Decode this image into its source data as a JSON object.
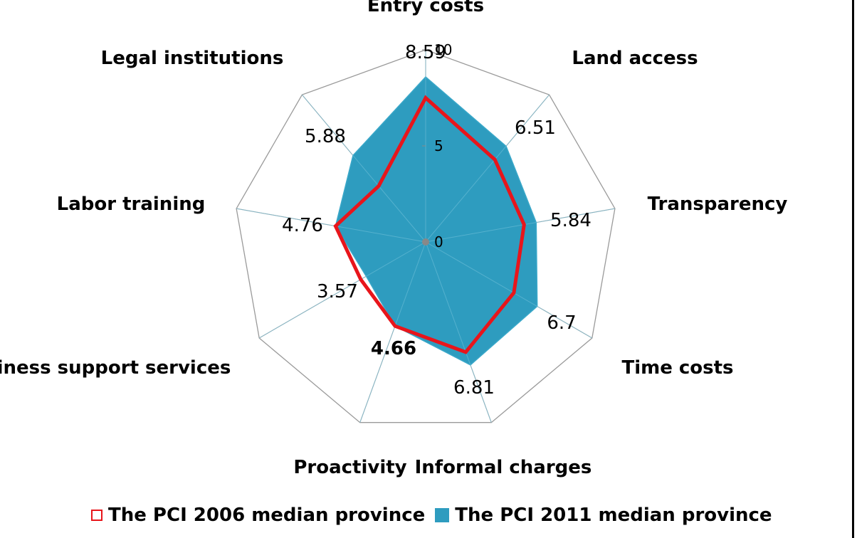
{
  "chart_data": {
    "type": "radar",
    "axes": [
      "Entry costs",
      "Land access",
      "Transparency",
      "Time costs",
      "Informal charges",
      "Proactivity",
      "Business support services",
      "Labor training",
      "Legal institutions"
    ],
    "axis_label_text": [
      "Entry costs",
      "Land access",
      "Transparency",
      "Time costs",
      "Informal charges",
      "Proactivity",
      "iness support services",
      "Labor training",
      "Legal institutions"
    ],
    "range": [
      0,
      10
    ],
    "ticks": [
      0,
      5,
      10
    ],
    "series": [
      {
        "name": "The PCI 2006 median province",
        "style": "line",
        "color": "#e8151b",
        "values": [
          7.5,
          5.6,
          5.2,
          5.3,
          6.1,
          4.66,
          3.9,
          4.76,
          3.8
        ]
      },
      {
        "name": "The PCI 2011 median province",
        "style": "filled",
        "color": "#2e9cbf",
        "values": [
          8.59,
          6.51,
          5.84,
          6.7,
          6.81,
          4.66,
          3.57,
          4.76,
          5.88
        ]
      }
    ],
    "data_labels": [
      "8.59",
      "6.51",
      "5.84",
      "6.7",
      "6.81",
      "4.66",
      "3.57",
      "4.76",
      "5.88"
    ],
    "legend": [
      "The PCI 2006 median province",
      "The PCI 2011 median province"
    ]
  }
}
